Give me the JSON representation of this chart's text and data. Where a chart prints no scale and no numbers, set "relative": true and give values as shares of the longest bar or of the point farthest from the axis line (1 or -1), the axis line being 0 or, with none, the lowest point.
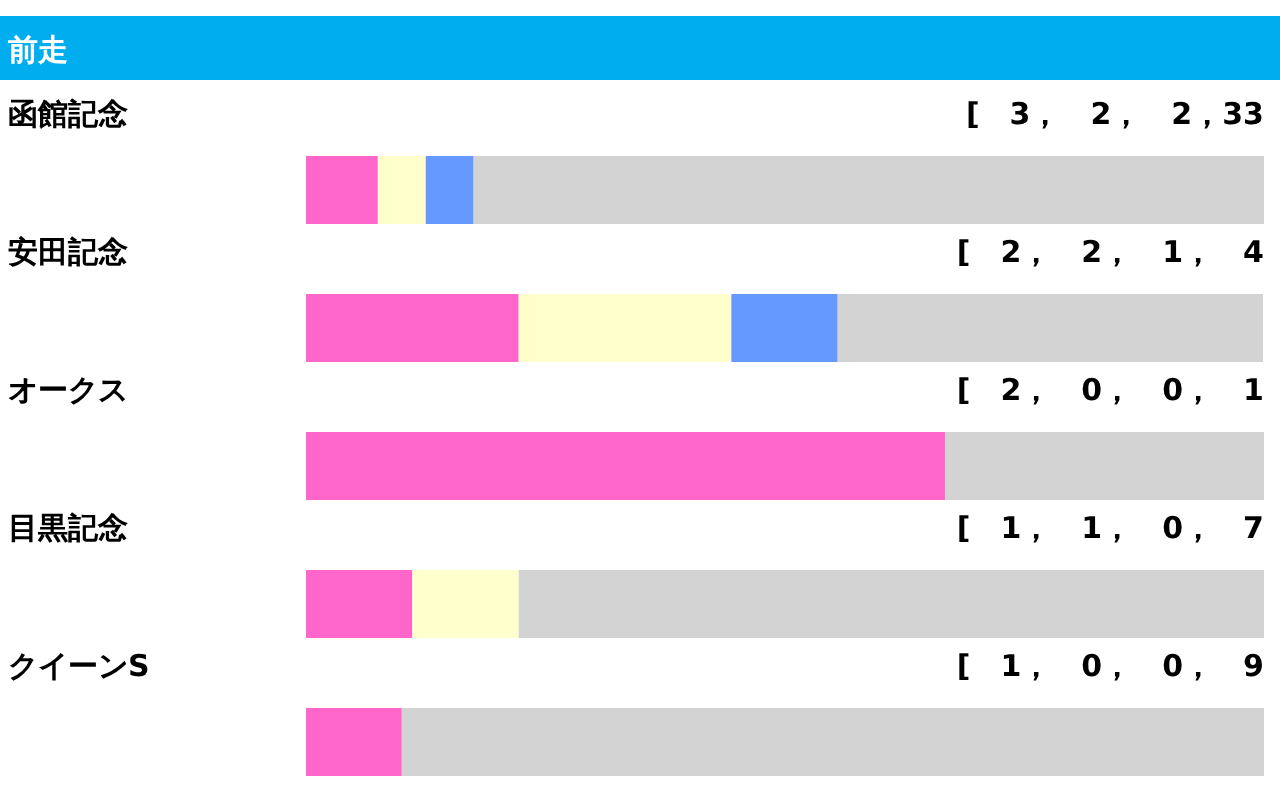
{
  "chart_data": {
    "type": "bar",
    "orientation": "horizontal",
    "stacked": true,
    "relative": true,
    "title": "前走",
    "categories": [
      "函館記念",
      "安田記念",
      "オークス",
      "目黒記念",
      "クイーンS"
    ],
    "series": [
      {
        "color": "#ff66cc",
        "values": [
          0.075,
          0.222,
          0.667,
          0.111,
          0.1
        ]
      },
      {
        "color": "#ffffcc",
        "values": [
          0.05,
          0.222,
          0,
          0.111,
          0
        ]
      },
      {
        "color": "#6699ff",
        "values": [
          0.05,
          0.111,
          0,
          0,
          0
        ]
      },
      {
        "color": "#d3d3d3",
        "values": [
          0.825,
          0.444,
          0.333,
          0.778,
          0.9
        ]
      }
    ],
    "annotations": [
      "[　3，　2，　2，33",
      "[　2，　2，　1，　4",
      "[　2，　0，　0，　1",
      "[　1，　1，　0，　7",
      "[　1，　0，　0，　9"
    ]
  }
}
